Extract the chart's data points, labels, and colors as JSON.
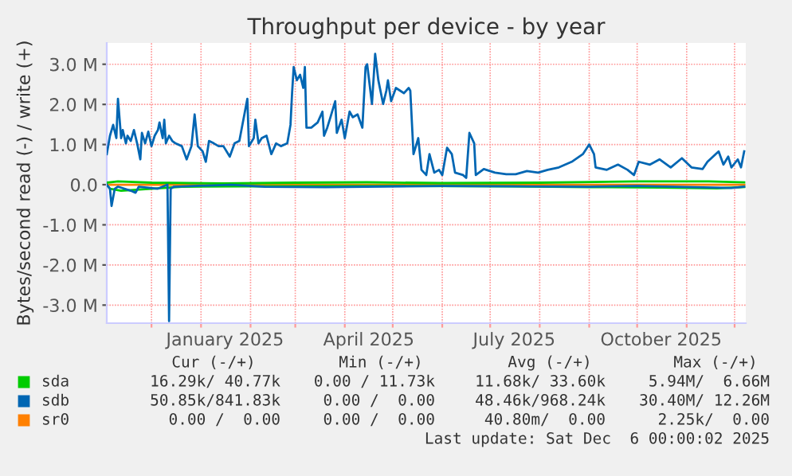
{
  "chart_data": {
    "type": "line",
    "title": "Throughput per device - by year",
    "ylabel": "Bytes/second read (-) / write (+)",
    "xlim": [
      "2024-11-03",
      "2025-12-08"
    ],
    "xticks": [
      {
        "value": "2024-12-01",
        "label": null
      },
      {
        "value": "2025-01-01",
        "label": null
      },
      {
        "value": "2025-01-16",
        "label": "January 2025"
      },
      {
        "value": "2025-02-01",
        "label": null
      },
      {
        "value": "2025-03-01",
        "label": null
      },
      {
        "value": "2025-04-01",
        "label": null
      },
      {
        "value": "2025-04-16",
        "label": "April 2025"
      },
      {
        "value": "2025-05-01",
        "label": null
      },
      {
        "value": "2025-06-01",
        "label": null
      },
      {
        "value": "2025-07-01",
        "label": null
      },
      {
        "value": "2025-07-16",
        "label": "July 2025"
      },
      {
        "value": "2025-08-01",
        "label": null
      },
      {
        "value": "2025-09-01",
        "label": null
      },
      {
        "value": "2025-10-01",
        "label": null
      },
      {
        "value": "2025-10-16",
        "label": "October 2025"
      },
      {
        "value": "2025-11-01",
        "label": null
      },
      {
        "value": "2025-12-01",
        "label": null
      }
    ],
    "ylim": [
      -3.45,
      3.53
    ],
    "yticks": [
      {
        "value": -3,
        "label": "-3.0 M"
      },
      {
        "value": -2,
        "label": "-2.0 M"
      },
      {
        "value": -1,
        "label": "-1.0 M"
      },
      {
        "value": 0,
        "label": "0.0"
      },
      {
        "value": 1,
        "label": "1.0 M"
      },
      {
        "value": 2,
        "label": "2.0 M"
      },
      {
        "value": 3,
        "label": "3.0 M"
      }
    ],
    "grid": true,
    "legend": "bottom",
    "series": [
      {
        "name": "sr0",
        "color": "#ff8000",
        "x": [
          "2024-11-03",
          "2025-12-07"
        ],
        "values": [
          0,
          0
        ]
      },
      {
        "name": "sda",
        "color": "#00cc00",
        "x": [
          "2024-11-03",
          "2024-11-10",
          "2024-12-01",
          "2025-01-15",
          "2025-03-01",
          "2025-04-15",
          "2025-06-01",
          "2025-08-01",
          "2025-10-01",
          "2025-11-15",
          "2025-12-07"
        ],
        "values": [
          0.05,
          0.08,
          0.05,
          0.03,
          0.05,
          0.06,
          0.04,
          0.05,
          0.08,
          0.08,
          0.06
        ]
      },
      {
        "color": "#00cc00",
        "x": [
          "2024-11-03",
          "2024-11-05",
          "2024-11-12",
          "2024-12-20",
          "2025-02-01",
          "2025-05-01",
          "2025-07-15",
          "2025-09-01",
          "2025-10-15",
          "2025-11-20",
          "2025-12-07"
        ],
        "values": [
          0,
          -0.1,
          -0.15,
          -0.05,
          -0.04,
          -0.03,
          -0.04,
          -0.06,
          -0.07,
          -0.09,
          -0.06
        ]
      },
      {
        "color": "#0066b3",
        "x": [
          "2024-11-03",
          "2024-11-05",
          "2024-11-06",
          "2024-11-08",
          "2024-11-10",
          "2024-11-18",
          "2024-11-21",
          "2024-11-23",
          "2024-12-05",
          "2024-12-11",
          "2024-12-12",
          "2024-12-13",
          "2024-12-15",
          "2025-01-20",
          "2025-02-10",
          "2025-03-20",
          "2025-06-01",
          "2025-09-01",
          "2025-10-01",
          "2025-11-29",
          "2025-12-07"
        ],
        "values": [
          0,
          -0.1,
          -0.53,
          -0.1,
          -0.05,
          -0.15,
          -0.2,
          -0.05,
          -0.1,
          0,
          -3.4,
          -0.1,
          -0.05,
          0,
          -0.05,
          -0.06,
          -0.03,
          -0.05,
          -0.03,
          -0.08,
          -0.05
        ]
      },
      {
        "name": "sdb",
        "color": "#0066b3",
        "x": [
          "2024-11-03",
          "2024-11-05",
          "2024-11-07",
          "2024-11-09",
          "2024-11-10",
          "2024-11-12",
          "2024-11-13",
          "2024-11-15",
          "2024-11-16",
          "2024-11-18",
          "2024-11-20",
          "2024-11-22",
          "2024-11-24",
          "2024-11-25",
          "2024-11-27",
          "2024-11-29",
          "2024-12-01",
          "2024-12-03",
          "2024-12-05",
          "2024-12-06",
          "2024-12-08",
          "2024-12-09",
          "2024-12-10",
          "2024-12-12",
          "2024-12-14",
          "2024-12-16",
          "2024-12-20",
          "2024-12-23",
          "2024-12-26",
          "2024-12-28",
          "2024-12-30",
          "2025-01-02",
          "2025-01-04",
          "2025-01-06",
          "2025-01-09",
          "2025-01-12",
          "2025-01-15",
          "2025-01-19",
          "2025-01-22",
          "2025-01-25",
          "2025-01-30",
          "2025-01-31",
          "2025-02-03",
          "2025-02-04",
          "2025-02-06",
          "2025-02-08",
          "2025-02-11",
          "2025-02-14",
          "2025-02-17",
          "2025-02-20",
          "2025-02-24",
          "2025-02-26",
          "2025-02-27",
          "2025-02-28",
          "2025-03-02",
          "2025-03-04",
          "2025-03-06",
          "2025-03-07",
          "2025-03-08",
          "2025-03-11",
          "2025-03-15",
          "2025-03-18",
          "2025-03-19",
          "2025-03-21",
          "2025-03-23",
          "2025-03-26",
          "2025-03-27",
          "2025-03-30",
          "2025-04-01",
          "2025-04-04",
          "2025-04-06",
          "2025-04-09",
          "2025-04-12",
          "2025-04-14",
          "2025-04-15",
          "2025-04-18",
          "2025-04-20",
          "2025-04-22",
          "2025-04-25",
          "2025-04-27",
          "2025-04-28",
          "2025-04-30",
          "2025-05-03",
          "2025-05-08",
          "2025-05-11",
          "2025-05-12",
          "2025-05-14",
          "2025-05-17",
          "2025-05-19",
          "2025-05-22",
          "2025-05-24",
          "2025-05-27",
          "2025-05-30",
          "2025-06-01",
          "2025-06-04",
          "2025-06-07",
          "2025-06-09",
          "2025-06-14",
          "2025-06-16",
          "2025-06-18",
          "2025-06-21",
          "2025-06-22",
          "2025-06-27",
          "2025-07-04",
          "2025-07-11",
          "2025-07-17",
          "2025-07-24",
          "2025-07-31",
          "2025-08-06",
          "2025-08-13",
          "2025-08-21",
          "2025-08-28",
          "2025-09-01",
          "2025-09-04",
          "2025-09-05",
          "2025-09-12",
          "2025-09-19",
          "2025-09-25",
          "2025-09-29",
          "2025-10-02",
          "2025-10-09",
          "2025-10-15",
          "2025-10-22",
          "2025-10-29",
          "2025-11-04",
          "2025-11-11",
          "2025-11-14",
          "2025-11-21",
          "2025-11-24",
          "2025-11-27",
          "2025-11-29",
          "2025-12-03",
          "2025-12-05",
          "2025-12-07"
        ],
        "values": [
          0.76,
          1.22,
          1.49,
          1.16,
          2.14,
          1.16,
          1.36,
          1.03,
          1.22,
          1.09,
          1.36,
          1.03,
          0.63,
          1.29,
          1.03,
          1.32,
          0.96,
          1.22,
          1.36,
          1.55,
          1.16,
          1.62,
          1.03,
          1.22,
          1.09,
          1.03,
          0.96,
          0.63,
          0.96,
          1.75,
          0.96,
          0.83,
          0.57,
          1.09,
          1.03,
          0.96,
          0.96,
          0.7,
          1.03,
          1.09,
          2.14,
          0.96,
          1.16,
          1.62,
          1.03,
          1.16,
          1.22,
          0.76,
          1.03,
          0.96,
          1.03,
          1.49,
          2.28,
          2.93,
          2.6,
          2.74,
          2.41,
          2.93,
          1.42,
          1.42,
          1.55,
          1.82,
          1.22,
          1.42,
          1.68,
          2.08,
          1.29,
          1.62,
          1.16,
          1.82,
          1.68,
          1.75,
          1.42,
          2.93,
          3.0,
          2.01,
          3.26,
          2.6,
          2.01,
          2.34,
          2.6,
          2.08,
          2.41,
          2.28,
          2.41,
          2.34,
          0.76,
          1.16,
          0.37,
          0.24,
          0.76,
          0.3,
          0.37,
          0.24,
          0.92,
          0.76,
          0.3,
          0.24,
          0.17,
          1.29,
          1.03,
          0.24,
          0.39,
          0.3,
          0.26,
          0.26,
          0.34,
          0.3,
          0.37,
          0.43,
          0.57,
          0.76,
          1.0,
          0.76,
          0.43,
          0.37,
          0.5,
          0.37,
          0.24,
          0.57,
          0.5,
          0.63,
          0.43,
          0.66,
          0.43,
          0.39,
          0.57,
          0.83,
          0.5,
          0.7,
          0.43,
          0.63,
          0.43,
          0.83
        ]
      }
    ],
    "annotations": [
      "Cur (-/+)",
      "Min (-/+)",
      "Avg (-/+)",
      "Max (-/+)",
      "16.29k/ 40.77k",
      "0.00 / 11.73k",
      "11.68k/ 33.60k",
      "5.94M/  6.66M",
      "50.85k/841.83k",
      "0.00 /  0.00",
      "48.46k/968.24k",
      "30.40M/ 12.26M",
      "0.00 /  0.00",
      "0.00 /  0.00",
      "40.80m/  0.00",
      "2.25k/  0.00",
      "Last update: Sat Dec  6 00:00:02 2025"
    ]
  }
}
